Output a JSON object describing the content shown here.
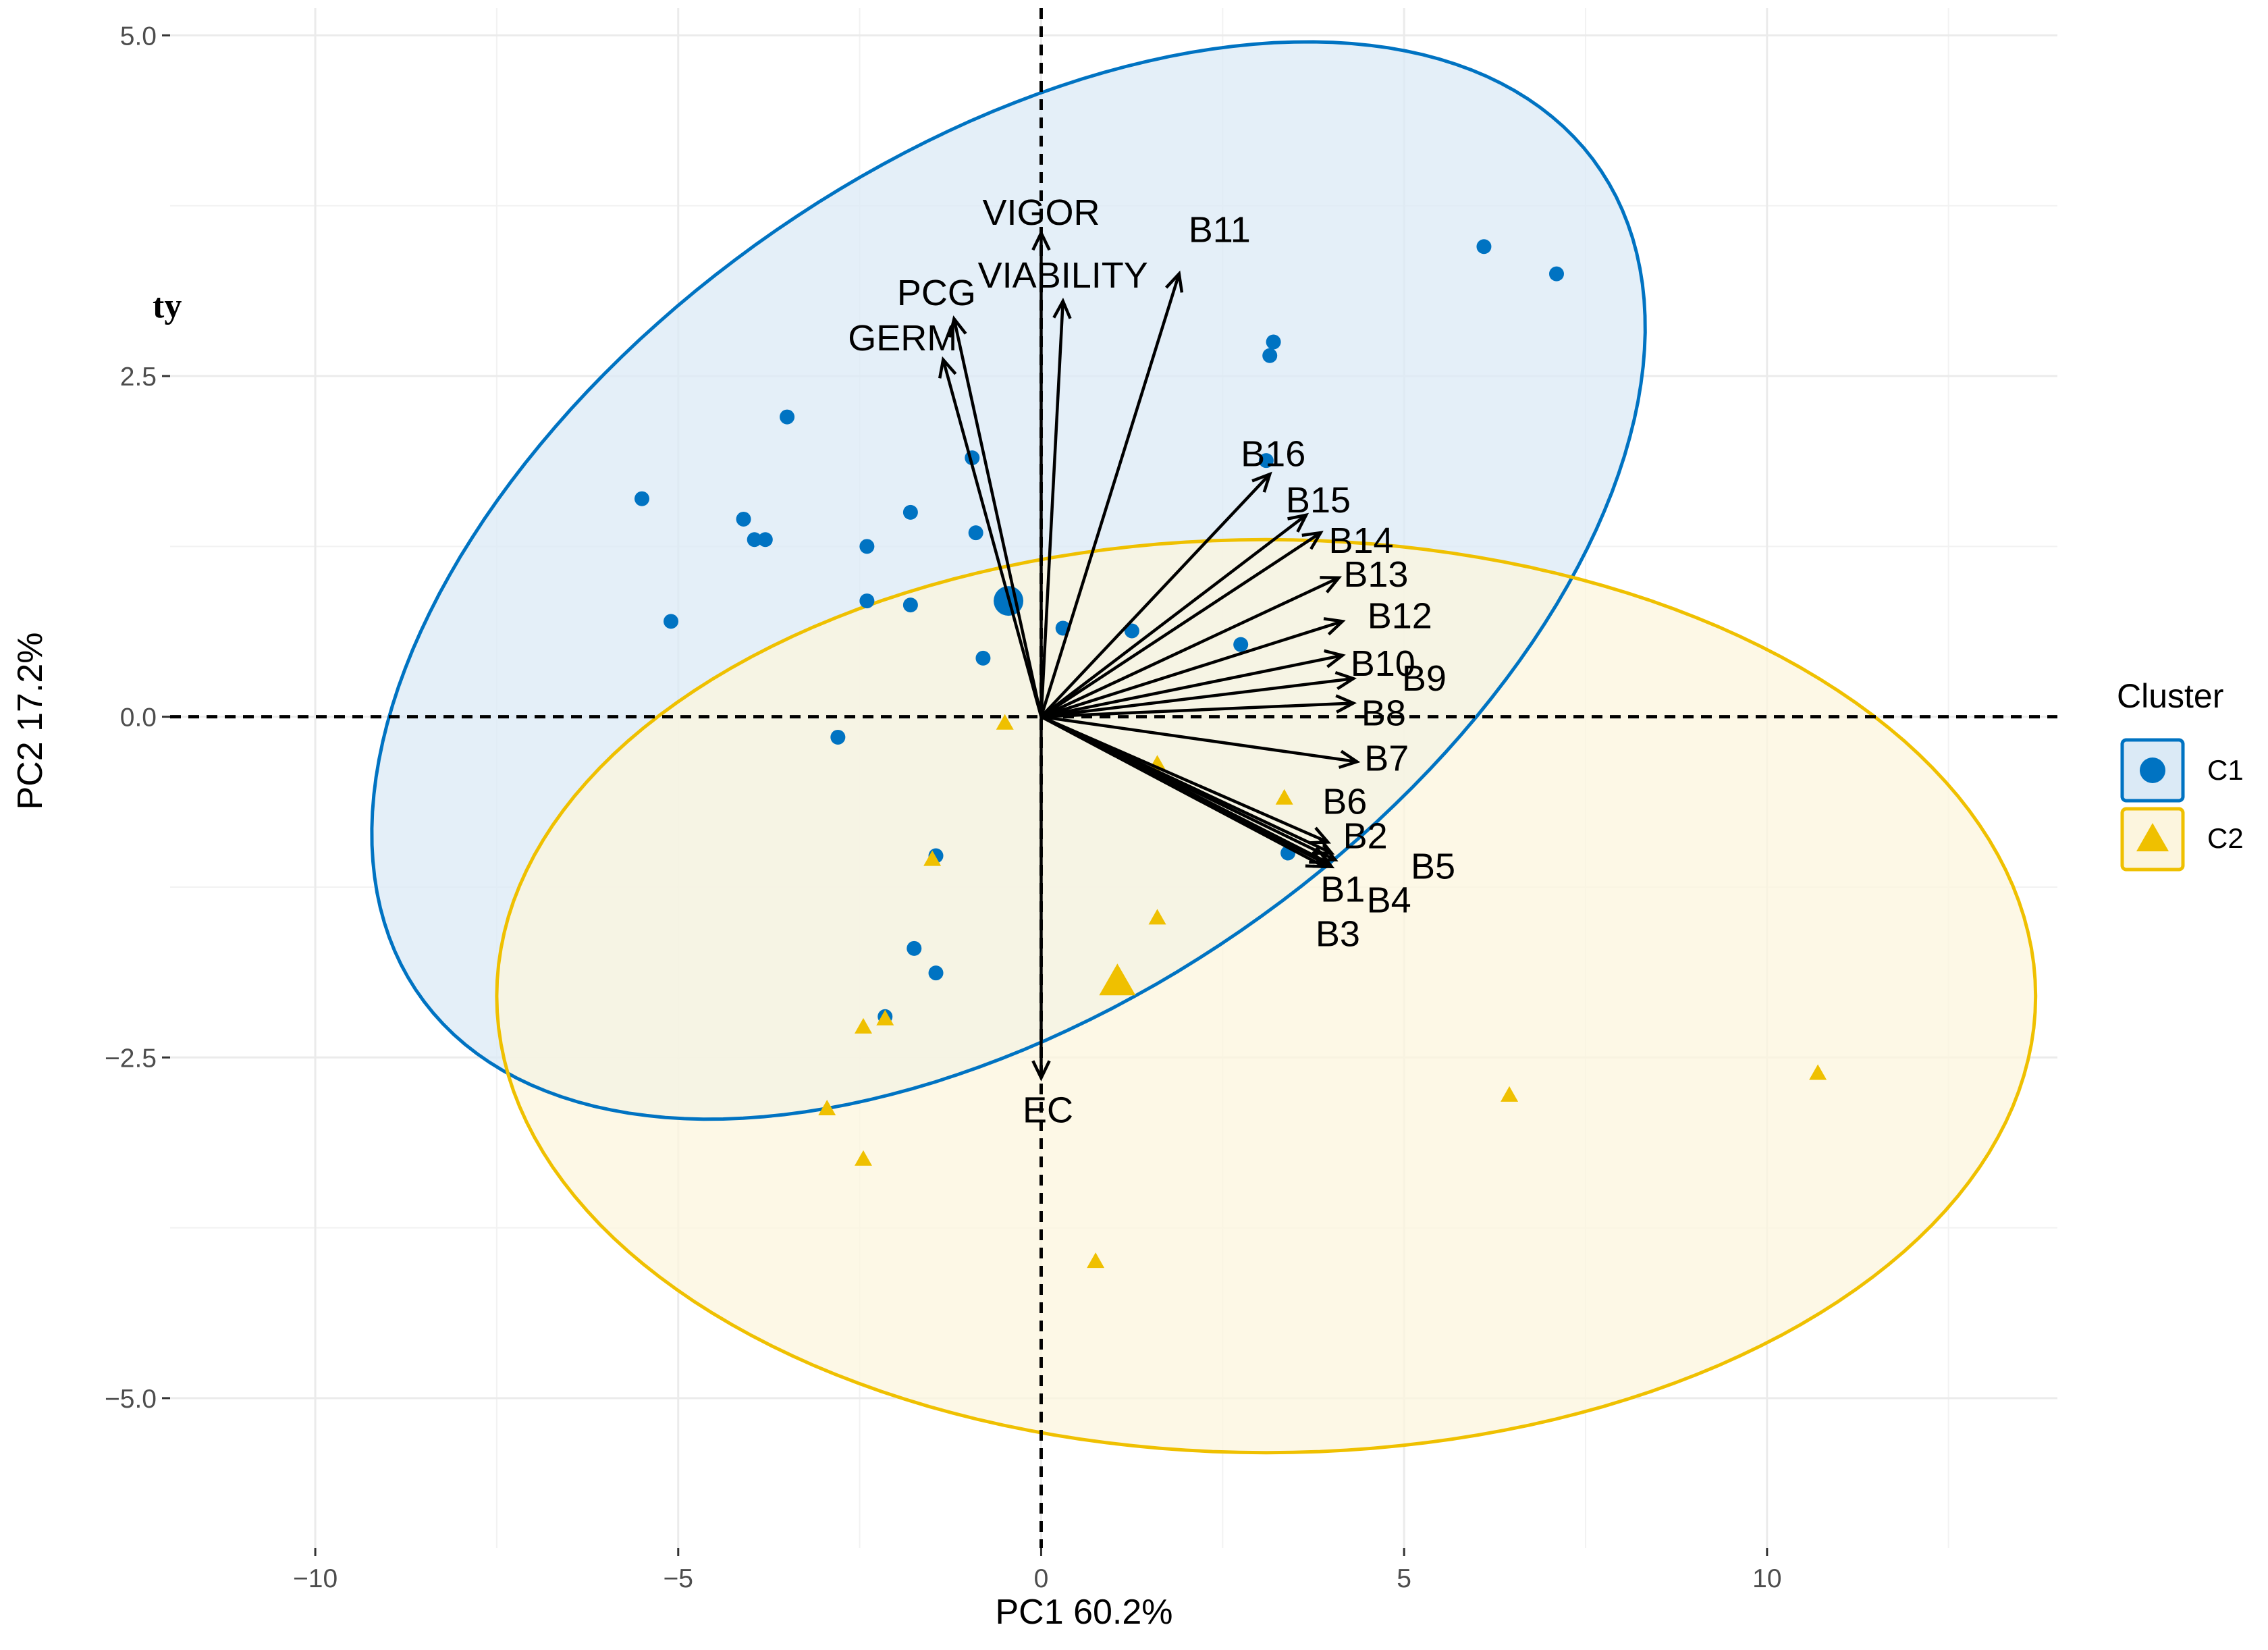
{
  "chart_data": {
    "type": "scatter",
    "subtype": "pca-biplot",
    "xlabel": "PC1 60.2%",
    "ylabel": "PC2 17.2%",
    "xlim": [
      -12,
      14
    ],
    "ylim": [
      -6.1,
      5.2
    ],
    "x_ticks": [
      -10,
      -5,
      0,
      5,
      10
    ],
    "x_tick_labels": [
      "−10",
      "−5",
      "0",
      "5",
      "10"
    ],
    "y_ticks": [
      5.0,
      2.5,
      0.0,
      -2.5,
      -5.0
    ],
    "y_tick_labels": [
      "5.0",
      "2.5",
      "0.0",
      "−2.5",
      "−5.0"
    ],
    "stray_text": "ty",
    "legend": {
      "title": "Cluster",
      "position": "right",
      "entries": [
        {
          "label": "C1",
          "shape": "circle",
          "color": "#0073C2"
        },
        {
          "label": "C2",
          "shape": "triangle",
          "color": "#EFC000"
        }
      ]
    },
    "colors": {
      "C1": "#0073C2",
      "C2": "#EFC000",
      "C1_fill": "#dbeaf6",
      "C2_fill": "#fcf5de",
      "overlap_fill": "#e4e9dc"
    },
    "ellipses": [
      {
        "cluster": "C1",
        "center": [
          -0.45,
          1.0
        ],
        "semi_major": 9.0,
        "semi_minor": 3.4,
        "angle_deg": 14
      },
      {
        "cluster": "C2",
        "center": [
          3.1,
          -2.05
        ],
        "semi_major": 10.6,
        "semi_minor": 3.35,
        "angle_deg": 0
      }
    ],
    "series": [
      {
        "name": "C1",
        "shape": "circle",
        "centroid": [
          -0.45,
          0.85
        ],
        "points": [
          [
            -5.5,
            1.6
          ],
          [
            -5.1,
            0.7
          ],
          [
            -4.1,
            1.45
          ],
          [
            -3.95,
            1.3
          ],
          [
            -3.8,
            1.3
          ],
          [
            -3.5,
            2.2
          ],
          [
            -2.8,
            -0.15
          ],
          [
            -2.4,
            1.25
          ],
          [
            -2.4,
            0.85
          ],
          [
            -1.8,
            1.5
          ],
          [
            -1.8,
            0.82
          ],
          [
            -0.95,
            1.9
          ],
          [
            -0.9,
            1.35
          ],
          [
            -0.8,
            0.43
          ],
          [
            0.3,
            0.65
          ],
          [
            1.25,
            0.63
          ],
          [
            2.75,
            0.53
          ],
          [
            3.1,
            1.88
          ],
          [
            3.15,
            2.65
          ],
          [
            3.2,
            2.75
          ],
          [
            3.4,
            -1.0
          ],
          [
            6.1,
            3.45
          ],
          [
            7.1,
            3.25
          ],
          [
            -1.45,
            -1.02
          ],
          [
            -1.75,
            -1.7
          ],
          [
            -1.45,
            -1.88
          ],
          [
            -2.15,
            -2.2
          ]
        ]
      },
      {
        "name": "C2",
        "shape": "triangle",
        "centroid": [
          1.05,
          -1.95
        ],
        "points": [
          [
            -0.5,
            -0.05
          ],
          [
            1.6,
            -0.35
          ],
          [
            3.35,
            -0.6
          ],
          [
            1.6,
            -1.48
          ],
          [
            -1.5,
            -1.05
          ],
          [
            -2.15,
            -2.22
          ],
          [
            -2.45,
            -2.28
          ],
          [
            -2.95,
            -2.88
          ],
          [
            -2.45,
            -3.25
          ],
          [
            0.75,
            -4.0
          ],
          [
            6.45,
            -2.78
          ],
          [
            10.7,
            -2.62
          ]
        ]
      }
    ],
    "loadings": [
      {
        "label": "VIGOR",
        "x": 0.0,
        "y": 3.55
      },
      {
        "label": "VIABILITY",
        "x": 0.3,
        "y": 3.05
      },
      {
        "label": "PCG",
        "x": -1.2,
        "y": 2.92
      },
      {
        "label": "GERM",
        "x": -1.35,
        "y": 2.62
      },
      {
        "label": "B11",
        "x": 1.9,
        "y": 3.25
      },
      {
        "label": "B16",
        "x": 3.15,
        "y": 1.78
      },
      {
        "label": "B15",
        "x": 3.65,
        "y": 1.48
      },
      {
        "label": "B14",
        "x": 3.85,
        "y": 1.35
      },
      {
        "label": "B13",
        "x": 4.1,
        "y": 1.02
      },
      {
        "label": "B12",
        "x": 4.15,
        "y": 0.7
      },
      {
        "label": "B10",
        "x": 4.15,
        "y": 0.45
      },
      {
        "label": "B9",
        "x": 4.3,
        "y": 0.28
      },
      {
        "label": "B8",
        "x": 4.3,
        "y": 0.1
      },
      {
        "label": "B7",
        "x": 4.35,
        "y": -0.33
      },
      {
        "label": "B6",
        "x": 3.95,
        "y": -0.92
      },
      {
        "label": "B2",
        "x": 4.0,
        "y": -1.0
      },
      {
        "label": "B5",
        "x": 4.05,
        "y": -1.05
      },
      {
        "label": "B1",
        "x": 3.95,
        "y": -1.07
      },
      {
        "label": "B4",
        "x": 4.0,
        "y": -1.1
      },
      {
        "label": "B3",
        "x": 3.9,
        "y": -1.1
      },
      {
        "label": "EC",
        "x": 0.0,
        "y": -2.65
      }
    ]
  }
}
